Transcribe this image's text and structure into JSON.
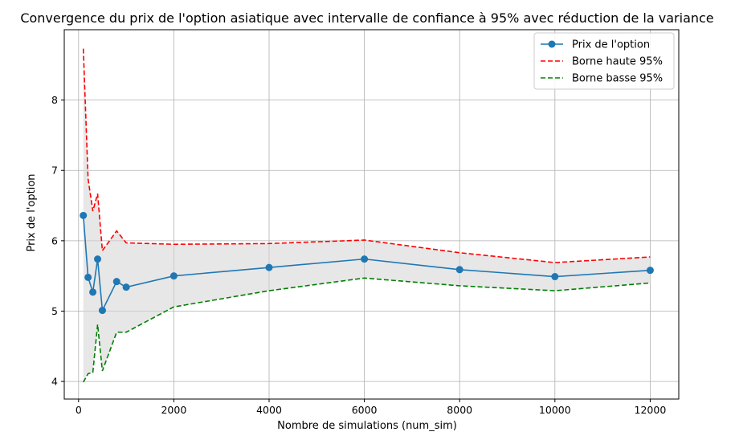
{
  "chart_data": {
    "type": "line",
    "title": "Convergence du prix de l'option asiatique avec intervalle de confiance à 95% avec réduction de la variance",
    "xlabel": "Nombre de simulations (num_sim)",
    "ylabel": "Prix de l'option",
    "xlim": [
      -300,
      12600
    ],
    "ylim": [
      3.75,
      9.0
    ],
    "xticks": [
      0,
      2000,
      4000,
      6000,
      8000,
      10000,
      12000
    ],
    "yticks": [
      4,
      5,
      6,
      7,
      8
    ],
    "xtick_labels": [
      "0",
      "2000",
      "4000",
      "6000",
      "8000",
      "10000",
      "12000"
    ],
    "ytick_labels": [
      "4",
      "5",
      "6",
      "7",
      "8"
    ],
    "grid": true,
    "legend_position": "top-right",
    "confidence_band_color": "#d3d3d3",
    "x": [
      100,
      200,
      300,
      400,
      500,
      800,
      1000,
      2000,
      4000,
      6000,
      8000,
      10000,
      12000
    ],
    "series": [
      {
        "name": "Prix de l'option",
        "style": "solid-marker",
        "color": "#1f77b4",
        "values": [
          6.36,
          5.48,
          5.27,
          5.74,
          5.01,
          5.42,
          5.34,
          5.5,
          5.62,
          5.74,
          5.59,
          5.49,
          5.58
        ]
      },
      {
        "name": "Borne haute 95%",
        "style": "dashed",
        "color": "#ff0000",
        "values": [
          8.73,
          6.88,
          6.42,
          6.67,
          5.86,
          6.14,
          5.97,
          5.95,
          5.96,
          6.01,
          5.83,
          5.69,
          5.77
        ]
      },
      {
        "name": "Borne basse 95%",
        "style": "dashed",
        "color": "#008000",
        "values": [
          3.99,
          4.11,
          4.13,
          4.81,
          4.15,
          4.7,
          4.7,
          5.06,
          5.29,
          5.47,
          5.36,
          5.29,
          5.4
        ]
      }
    ]
  }
}
